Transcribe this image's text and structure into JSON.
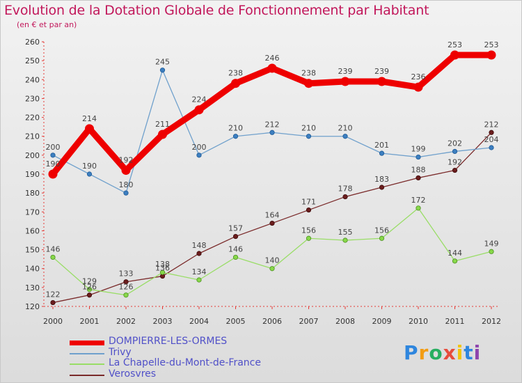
{
  "header": {
    "title": "Evolution de la Dotation Globale de Fonctionnement par Habitant",
    "subtitle": "(en € et par an)"
  },
  "chart_data": {
    "type": "line",
    "title": "Evolution de la Dotation Globale de Fonctionnement par Habitant",
    "subtitle": "(en € et par an)",
    "xlabel": "",
    "ylabel": "",
    "x": [
      "2000",
      "2001",
      "2002",
      "2003",
      "2004",
      "2005",
      "2006",
      "2007",
      "2008",
      "2009",
      "2010",
      "2011",
      "2012"
    ],
    "ylim": [
      120,
      260
    ],
    "yticks": [
      120,
      130,
      140,
      150,
      160,
      170,
      180,
      190,
      200,
      210,
      220,
      230,
      240,
      250,
      260
    ],
    "grid": false,
    "legend_position": "bottom-left",
    "series": [
      {
        "name": "DOMPIERRE-LES-ORMES",
        "color": "#ee0000",
        "values": [
          190,
          214,
          192,
          211,
          224,
          238,
          246,
          238,
          239,
          239,
          236,
          253,
          253
        ]
      },
      {
        "name": "Trivy",
        "color": "#6fa0cc",
        "values": [
          200,
          190,
          180,
          245,
          200,
          210,
          212,
          210,
          210,
          201,
          199,
          202,
          204
        ]
      },
      {
        "name": "La Chapelle-du-Mont-de-France",
        "color": "#99dd66",
        "values": [
          146,
          129,
          126,
          138,
          134,
          146,
          140,
          156,
          155,
          156,
          172,
          144,
          149
        ]
      },
      {
        "name": "Verosvres",
        "color": "#7a2a2a",
        "values": [
          122,
          126,
          133,
          136,
          148,
          157,
          164,
          171,
          178,
          183,
          188,
          192,
          212
        ]
      }
    ]
  },
  "logo": {
    "text": "Proxiti"
  }
}
